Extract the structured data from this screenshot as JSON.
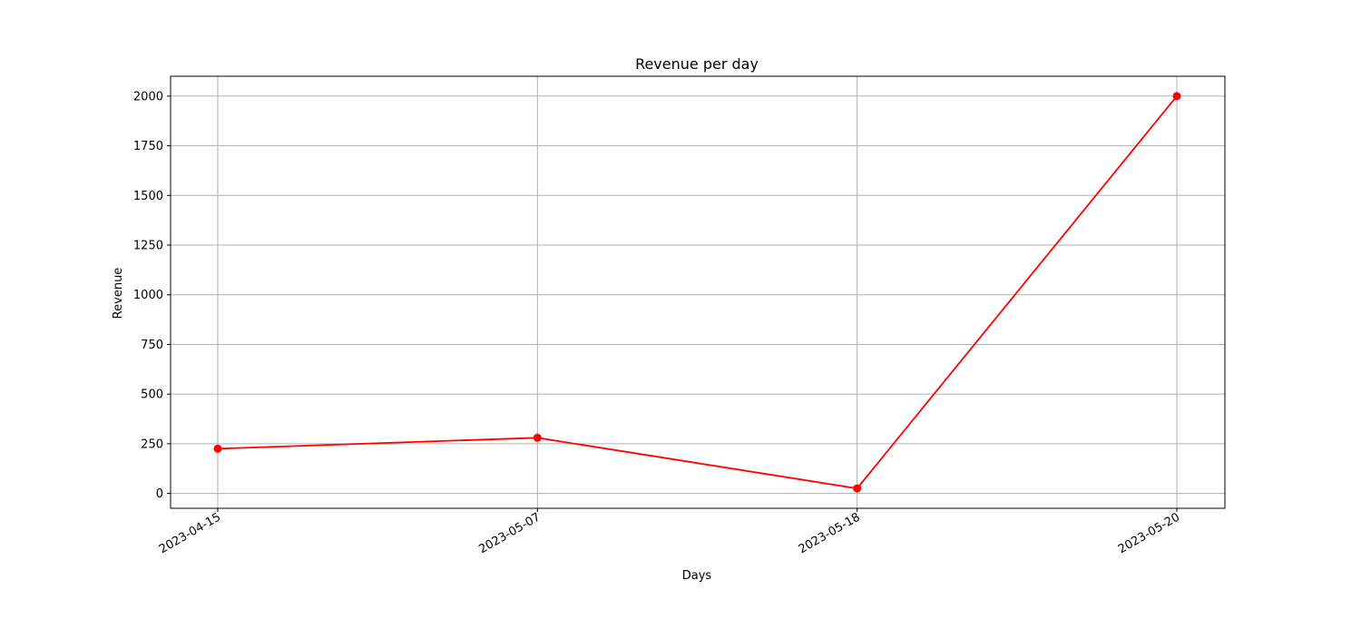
{
  "chart_data": {
    "type": "line",
    "title": "Revenue per day",
    "xlabel": "Days",
    "ylabel": "Revenue",
    "categories": [
      "2023-04-15",
      "2023-05-07",
      "2023-05-18",
      "2023-05-20"
    ],
    "series": [
      {
        "values": [
          225,
          280,
          25,
          2000
        ],
        "color": "#ff0000"
      }
    ],
    "ylim": [
      -75,
      2100
    ],
    "yticks": [
      0,
      250,
      500,
      750,
      1000,
      1250,
      1500,
      1750,
      2000
    ],
    "grid": true,
    "marker": "circle",
    "legend": "none"
  }
}
